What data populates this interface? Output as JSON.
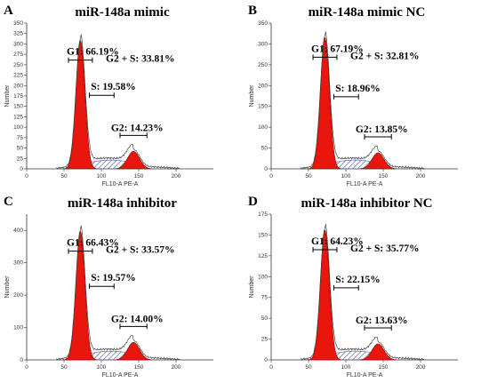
{
  "panels": [
    {
      "letter": "A",
      "title": "miR-148a mimic",
      "g1": "G1: 66.19%",
      "g2s": "G2 + S: 33.81%",
      "s": "S: 19.58%",
      "g2": "G2: 14.23%"
    },
    {
      "letter": "B",
      "title": "miR-148a mimic  NC",
      "g1": "G1: 67.19%",
      "g2s": "G2 + S: 32.81%",
      "s": "S: 18.96%",
      "g2": "G2: 13.85%"
    },
    {
      "letter": "C",
      "title": "miR-148a inhibitor",
      "g1": "G1: 66.43%",
      "g2s": "G2 + S: 33.57%",
      "s": "S: 19.57%",
      "g2": "G2: 14.00%"
    },
    {
      "letter": "D",
      "title": "miR-148a inhibitor  NC",
      "g1": "G1: 64.23%",
      "g2s": "G2 + S: 35.77%",
      "s": "S: 22.15%",
      "g2": "G2: 13.63%"
    }
  ],
  "chart_data": [
    {
      "type": "area",
      "title": "miR-148a mimic",
      "xlabel": "FL10-A PE-A",
      "ylabel": "Number",
      "xlim": [
        0,
        250
      ],
      "ylim": [
        0,
        350
      ],
      "x_ticks": [
        0,
        50,
        100,
        150,
        200
      ],
      "y_ticks": [
        0,
        25,
        50,
        75,
        100,
        125,
        150,
        175,
        200,
        225,
        250,
        275,
        300,
        325,
        350
      ],
      "annotations": [
        "G1: 66.19%",
        "G2 + S: 33.81%",
        "S: 19.58%",
        "G2: 14.23%"
      ]
    },
    {
      "type": "area",
      "title": "miR-148a mimic  NC",
      "xlabel": "FL10-A PE-A",
      "ylabel": "Number",
      "xlim": [
        0,
        250
      ],
      "ylim": [
        0,
        350
      ],
      "x_ticks": [
        0,
        50,
        100,
        150,
        200
      ],
      "y_ticks": [
        0,
        50,
        100,
        150,
        200,
        250,
        300,
        350
      ],
      "annotations": [
        "G1: 67.19%",
        "G2 + S: 32.81%",
        "S: 18.96%",
        "G2: 13.85%"
      ]
    },
    {
      "type": "area",
      "title": "miR-148a inhibitor",
      "xlabel": "FL10-A PE-A",
      "ylabel": "Number",
      "xlim": [
        0,
        250
      ],
      "ylim": [
        0,
        450
      ],
      "x_ticks": [
        0,
        50,
        100,
        150,
        200
      ],
      "y_ticks": [
        0,
        100,
        200,
        300,
        400
      ],
      "annotations": [
        "G1: 66.43%",
        "G2 + S: 33.57%",
        "S: 19.57%",
        "G2: 14.00%"
      ]
    },
    {
      "type": "area",
      "title": "miR-148a inhibitor  NC",
      "xlabel": "FL10-A PE-A",
      "ylabel": "Number",
      "xlim": [
        0,
        250
      ],
      "ylim": [
        0,
        175
      ],
      "x_ticks": [
        0,
        50,
        100,
        150,
        200
      ],
      "y_ticks": [
        0,
        25,
        50,
        75,
        100,
        125,
        150,
        175
      ],
      "annotations": [
        "G1: 64.23%",
        "G2 + S: 35.77%",
        "S: 22.15%",
        "G2: 13.63%"
      ]
    }
  ],
  "colors": {
    "g1_fill": "#e8160c",
    "s_hatch": "#4a56a8",
    "background": "#ffffff"
  }
}
